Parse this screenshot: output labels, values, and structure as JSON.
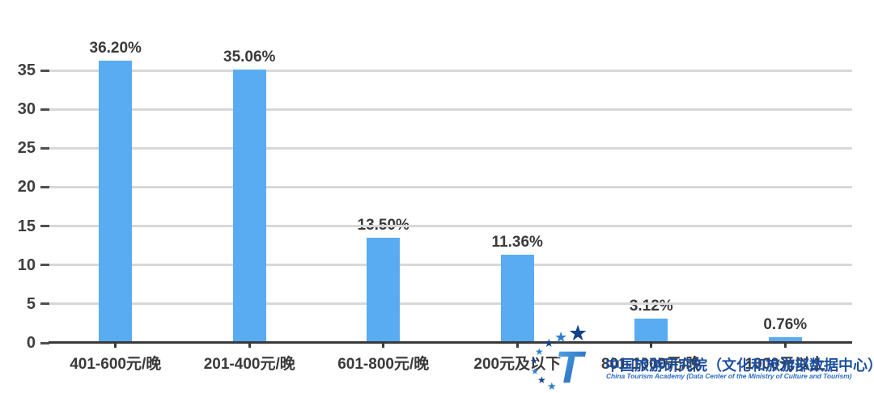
{
  "chart_data": {
    "type": "bar",
    "title": "",
    "xlabel": "",
    "ylabel": "",
    "categories": [
      "401-600元/晚",
      "201-400元/晚",
      "601-800元/晚",
      "200元及以下",
      "801-1000元/晚",
      "1000元以上"
    ],
    "values": [
      36.2,
      35.06,
      13.5,
      11.36,
      3.12,
      0.76
    ],
    "value_labels": [
      "36.20%",
      "35.06%",
      "13.50%",
      "11.36%",
      "3.12%",
      "0.76%"
    ],
    "y_ticks": [
      0,
      5,
      10,
      15,
      20,
      25,
      30,
      35
    ],
    "ylim": [
      0,
      35
    ],
    "grid": true,
    "legend": "none",
    "bar_color": "#59ACF2",
    "grid_color": "#D8D8D8",
    "axis_color": "#3A3A3A",
    "text_color": "#3A3A3A"
  },
  "watermark": {
    "org_cn": "中国旅游研究院（文化和旅游部数据中心）",
    "org_en": "China Tourism Academy (Data Center of the Ministry of Culture and Tourism)",
    "logo_letter": "T",
    "color_cn": "#1C4FA2",
    "color_en": "#2B6BC4",
    "star_navy": "#12418F",
    "star_blue": "#2E7FD0",
    "t_gradient": [
      "#55AEEE",
      "#1956AE"
    ]
  }
}
